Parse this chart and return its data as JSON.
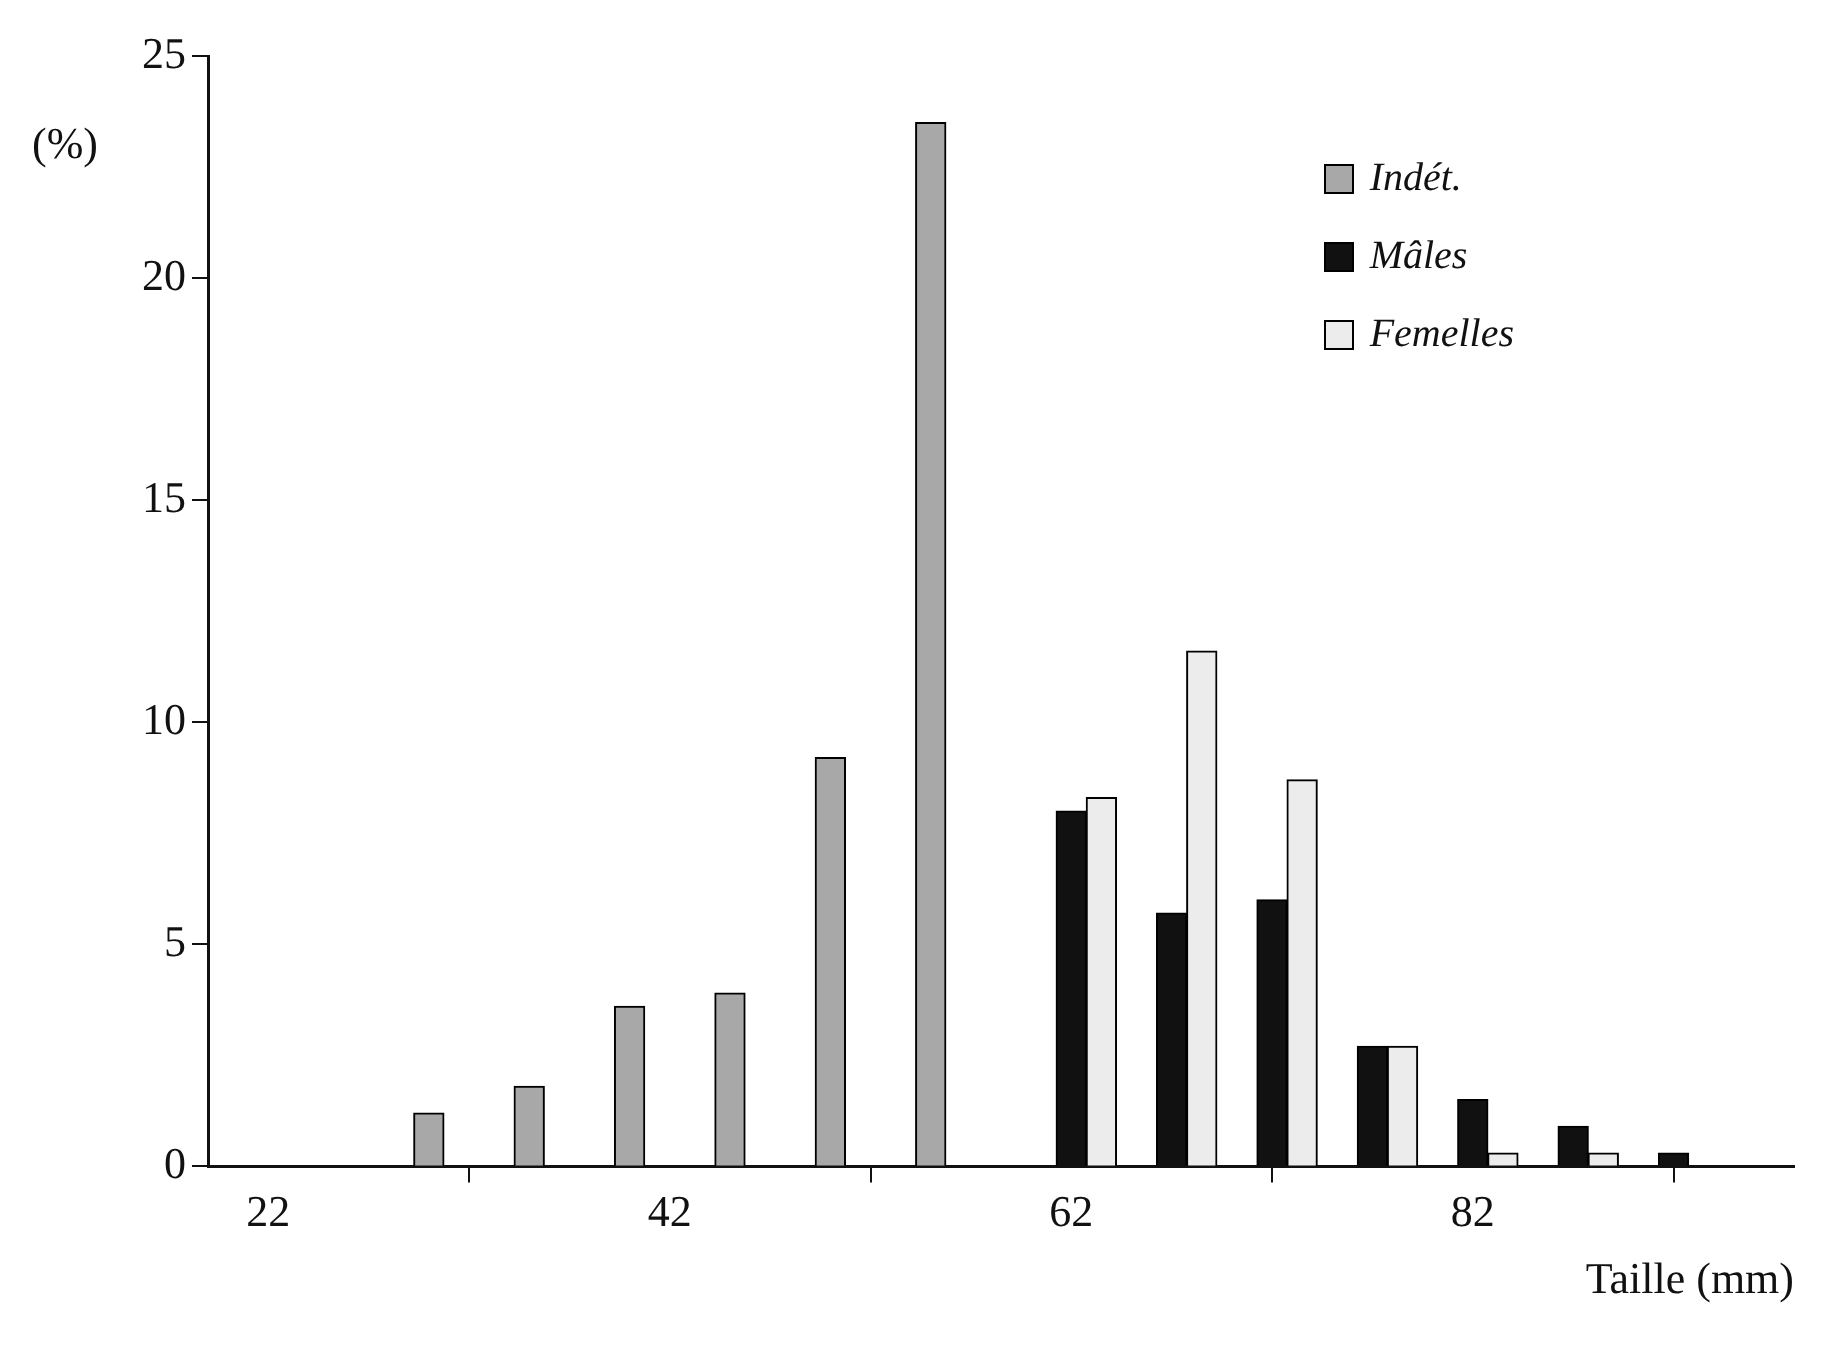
{
  "chart_data": {
    "type": "bar",
    "xlabel": "Taille (mm)",
    "ylabel": "(%)",
    "xlim": [
      19,
      98
    ],
    "xticks": [
      22,
      42,
      62,
      82
    ],
    "ylim": [
      0,
      25
    ],
    "yticks": [
      0,
      5,
      10,
      15,
      20,
      25
    ],
    "grid": false,
    "legend": "top right",
    "series": [
      {
        "name": "Indét.",
        "color": "#a8a8a8",
        "x": [
          30,
          35,
          40,
          45,
          50,
          55
        ],
        "values": [
          1.2,
          1.8,
          3.6,
          3.9,
          9.2,
          23.5
        ]
      },
      {
        "name": "Mâles",
        "color": "#111111",
        "x": [
          62,
          67,
          72,
          77,
          82,
          87,
          92
        ],
        "values": [
          8.0,
          5.7,
          6.0,
          2.7,
          1.5,
          0.9,
          0.3
        ]
      },
      {
        "name": "Femelles",
        "color": "#ececec",
        "x": [
          63.5,
          68.5,
          73.5,
          78.5,
          83.5,
          88.5
        ],
        "values": [
          8.3,
          11.6,
          8.7,
          2.7,
          0.3,
          0.3
        ]
      }
    ]
  }
}
